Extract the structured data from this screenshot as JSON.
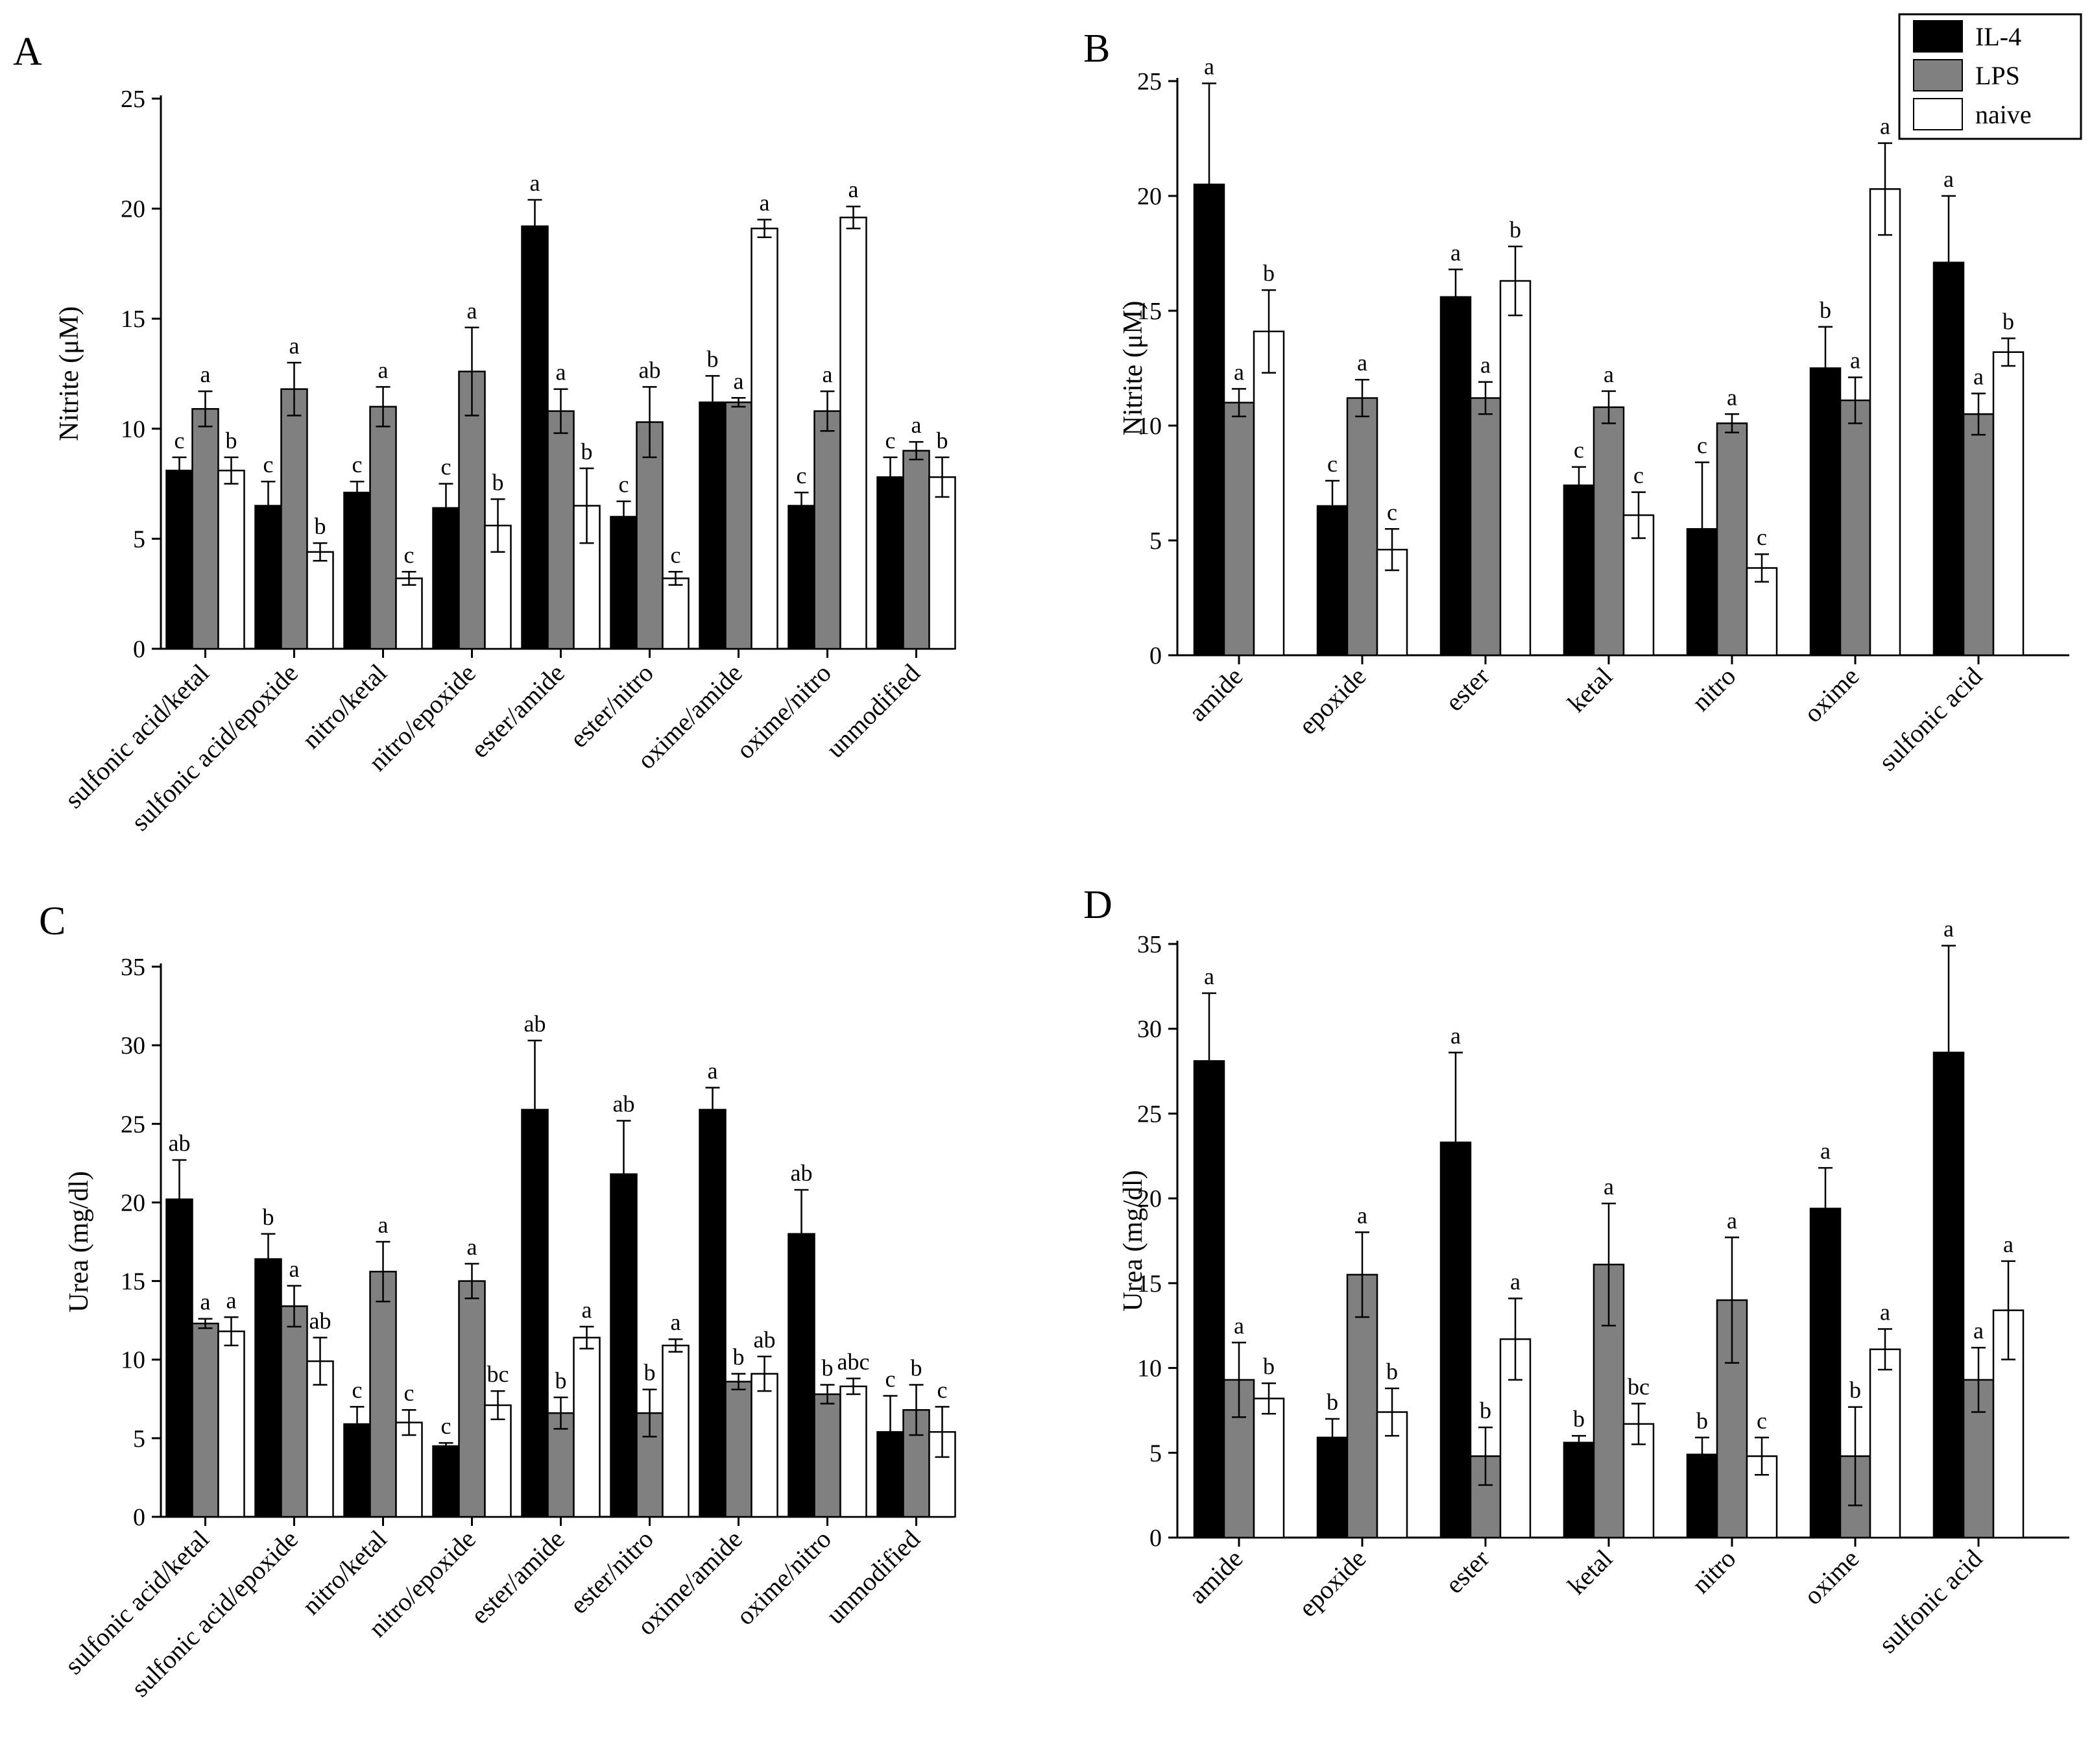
{
  "legend": {
    "entries": [
      {
        "name": "IL-4",
        "color": "#000000"
      },
      {
        "name": "LPS",
        "color": "#808080"
      },
      {
        "name": "naive",
        "color": "#ffffff"
      }
    ]
  },
  "chart_data": [
    {
      "panel": "A",
      "type": "bar",
      "title": "",
      "xlabel": "",
      "ylabel": "Nitrite (μM)",
      "ylim": [
        0,
        25
      ],
      "yticks": [
        0,
        5,
        10,
        15,
        20,
        25
      ],
      "categories": [
        "sulfonic acid/ketal",
        "sulfonic acid/epoxide",
        "nitro/ketal",
        "nitro/epoxide",
        "ester/amide",
        "ester/nitro",
        "oxime/amide",
        "oxime/nitro",
        "unmodified"
      ],
      "series": [
        {
          "name": "IL-4",
          "values": [
            8.1,
            6.5,
            7.1,
            6.4,
            19.2,
            6.0,
            11.2,
            6.5,
            7.8
          ],
          "errors": [
            0.6,
            1.1,
            0.5,
            1.1,
            1.2,
            0.7,
            1.2,
            0.6,
            0.9
          ],
          "labels": [
            "c",
            "c",
            "c",
            "c",
            "a",
            "c",
            "b",
            "c",
            "c"
          ]
        },
        {
          "name": "LPS",
          "values": [
            10.9,
            11.8,
            11.0,
            12.6,
            10.8,
            10.3,
            11.2,
            10.8,
            9.0
          ],
          "errors": [
            0.8,
            1.2,
            0.9,
            2.0,
            1.0,
            1.6,
            0.2,
            0.9,
            0.4
          ],
          "labels": [
            "a",
            "a",
            "a",
            "a",
            "a",
            "ab",
            "a",
            "a",
            "a"
          ]
        },
        {
          "name": "naive",
          "values": [
            8.1,
            4.4,
            3.2,
            5.6,
            6.5,
            3.2,
            19.1,
            19.6,
            7.8
          ],
          "errors": [
            0.6,
            0.4,
            0.3,
            1.2,
            1.7,
            0.3,
            0.4,
            0.5,
            0.9
          ],
          "labels": [
            "b",
            "b",
            "c",
            "b",
            "b",
            "c",
            "a",
            "a",
            "b"
          ]
        }
      ]
    },
    {
      "panel": "B",
      "type": "bar",
      "title": "",
      "xlabel": "",
      "ylabel": "Nitrite (μM)",
      "ylim": [
        0,
        25
      ],
      "yticks": [
        0,
        5,
        10,
        15,
        20,
        25
      ],
      "categories": [
        "amide",
        "epoxide",
        "ester",
        "ketal",
        "nitro",
        "oxime",
        "sulfonic acid"
      ],
      "series": [
        {
          "name": "IL-4",
          "values": [
            20.5,
            6.5,
            15.6,
            7.4,
            5.5,
            12.5,
            17.1
          ],
          "errors": [
            4.4,
            1.1,
            1.2,
            0.8,
            2.9,
            1.8,
            2.9
          ],
          "labels": [
            "a",
            "c",
            "a",
            "c",
            "c",
            "b",
            "a"
          ]
        },
        {
          "name": "LPS",
          "values": [
            11.0,
            11.2,
            11.2,
            10.8,
            10.1,
            11.1,
            10.5
          ],
          "errors": [
            0.6,
            0.8,
            0.7,
            0.7,
            0.4,
            1.0,
            0.9
          ],
          "labels": [
            "a",
            "a",
            "a",
            "a",
            "a",
            "a",
            "a"
          ]
        },
        {
          "name": "naive",
          "values": [
            14.1,
            4.6,
            16.3,
            6.1,
            3.8,
            20.3,
            13.2
          ],
          "errors": [
            1.8,
            0.9,
            1.5,
            1.0,
            0.6,
            2.0,
            0.6
          ],
          "labels": [
            "b",
            "c",
            "b",
            "c",
            "c",
            "a",
            "b"
          ]
        }
      ]
    },
    {
      "panel": "C",
      "type": "bar",
      "title": "",
      "xlabel": "",
      "ylabel": "Urea (mg/dl)",
      "ylim": [
        0,
        35
      ],
      "yticks": [
        0,
        5,
        10,
        15,
        20,
        25,
        30,
        35
      ],
      "categories": [
        "sulfonic acid/ketal",
        "sulfonic acid/epoxide",
        "nitro/ketal",
        "nitro/epoxide",
        "ester/amide",
        "ester/nitro",
        "oxime/amide",
        "oxime/nitro",
        "unmodified"
      ],
      "series": [
        {
          "name": "IL-4",
          "values": [
            20.2,
            16.4,
            5.9,
            4.5,
            25.9,
            21.8,
            25.9,
            18.0,
            5.4
          ],
          "errors": [
            2.5,
            1.6,
            1.1,
            0.2,
            4.4,
            3.4,
            1.4,
            2.8,
            2.3
          ],
          "labels": [
            "ab",
            "b",
            "c",
            "c",
            "ab",
            "ab",
            "a",
            "ab",
            "c"
          ]
        },
        {
          "name": "LPS",
          "values": [
            12.3,
            13.4,
            15.6,
            15.0,
            6.6,
            6.6,
            8.6,
            7.8,
            6.8
          ],
          "errors": [
            0.3,
            1.3,
            1.9,
            1.1,
            1.0,
            1.5,
            0.5,
            0.6,
            1.6
          ],
          "labels": [
            "a",
            "a",
            "a",
            "a",
            "b",
            "b",
            "b",
            "b",
            "b"
          ]
        },
        {
          "name": "naive",
          "values": [
            11.8,
            9.9,
            6.0,
            7.1,
            11.4,
            10.9,
            9.1,
            8.3,
            5.4
          ],
          "errors": [
            0.9,
            1.5,
            0.8,
            0.9,
            0.7,
            0.4,
            1.1,
            0.5,
            1.6
          ],
          "labels": [
            "a",
            "ab",
            "c",
            "bc",
            "a",
            "a",
            "ab",
            "abc",
            "c"
          ]
        }
      ]
    },
    {
      "panel": "D",
      "type": "bar",
      "title": "",
      "xlabel": "",
      "ylabel": "Urea (mg/dl)",
      "ylim": [
        0,
        35
      ],
      "yticks": [
        0,
        5,
        10,
        15,
        20,
        25,
        30,
        35
      ],
      "categories": [
        "amide",
        "epoxide",
        "ester",
        "ketal",
        "nitro",
        "oxime",
        "sulfonic acid"
      ],
      "series": [
        {
          "name": "IL-4",
          "values": [
            28.1,
            5.9,
            23.3,
            5.6,
            4.9,
            19.4,
            28.6
          ],
          "errors": [
            4.0,
            1.1,
            5.3,
            0.4,
            1.0,
            2.4,
            6.3
          ],
          "labels": [
            "a",
            "b",
            "a",
            "b",
            "b",
            "a",
            "a"
          ]
        },
        {
          "name": "LPS",
          "values": [
            9.3,
            15.5,
            4.8,
            16.1,
            14.0,
            4.8,
            9.3
          ],
          "errors": [
            2.2,
            2.5,
            1.7,
            3.6,
            3.7,
            2.9,
            1.9
          ],
          "labels": [
            "a",
            "a",
            "b",
            "a",
            "a",
            "b",
            "a"
          ]
        },
        {
          "name": "naive",
          "values": [
            8.2,
            7.4,
            11.7,
            6.7,
            4.8,
            11.1,
            13.4
          ],
          "errors": [
            0.9,
            1.4,
            2.4,
            1.2,
            1.1,
            1.2,
            2.9
          ],
          "labels": [
            "b",
            "b",
            "a",
            "bc",
            "c",
            "a",
            "a"
          ]
        }
      ]
    }
  ]
}
